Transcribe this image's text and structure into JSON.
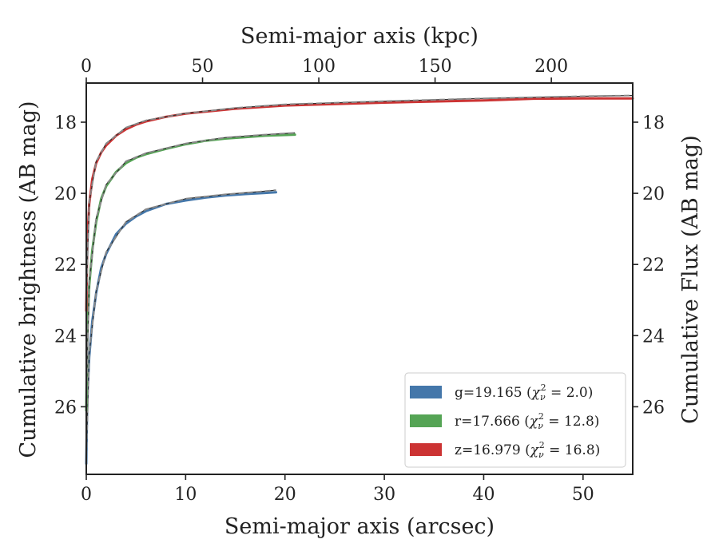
{
  "chart_data": {
    "type": "line",
    "xlabel": "Semi-major axis (arcsec)",
    "x2label": "Semi-major axis (kpc)",
    "ylabel": "Cumulative brightness (AB mag)",
    "y2label": "Cumulative Flux (AB mag)",
    "xlim": [
      0,
      55
    ],
    "x2lim": [
      0,
      235
    ],
    "ylim": [
      27.9,
      16.9
    ],
    "y_inverted": true,
    "x_ticks": [
      "0",
      "10",
      "20",
      "30",
      "40",
      "50"
    ],
    "x2_ticks": [
      "0",
      "50",
      "100",
      "150",
      "200"
    ],
    "y_ticks": [
      "18",
      "20",
      "22",
      "24",
      "26"
    ],
    "grid": false,
    "legend_position": "lower-right",
    "series": [
      {
        "name": "g",
        "legend": {
          "main": "g=19.165 (",
          "chi_sub": "ν",
          "chi_sup": "2",
          "value": " = 2.0)"
        },
        "color": "#4477aa",
        "model_color": "#888888",
        "x": [
          0,
          0.1,
          0.3,
          0.6,
          1,
          1.5,
          2,
          3,
          4,
          5,
          6,
          8,
          10,
          12,
          14,
          16,
          18,
          19.1
        ],
        "y": [
          27.6,
          25.8,
          24.6,
          23.6,
          22.8,
          22.1,
          21.7,
          21.15,
          20.85,
          20.65,
          20.5,
          20.3,
          20.2,
          20.12,
          20.06,
          20.02,
          19.99,
          19.97
        ],
        "model_x": [
          0,
          0.3,
          1,
          2,
          4,
          6,
          10,
          14,
          18,
          19.1
        ],
        "model_y": [
          27.4,
          24.5,
          22.75,
          21.65,
          20.8,
          20.45,
          20.15,
          20.03,
          19.94,
          19.91
        ]
      },
      {
        "name": "r",
        "legend": {
          "main": "r=17.666 (",
          "chi_sub": "ν",
          "chi_sup": "2",
          "value": " = 12.8)"
        },
        "color": "#55a455",
        "model_color": "#888888",
        "x": [
          0,
          0.1,
          0.3,
          0.6,
          1,
          1.5,
          2,
          3,
          4,
          5,
          6,
          8,
          10,
          12,
          14,
          16,
          18,
          21
        ],
        "y": [
          26.1,
          24.0,
          22.6,
          21.6,
          20.8,
          20.15,
          19.8,
          19.4,
          19.15,
          19.0,
          18.9,
          18.75,
          18.62,
          18.52,
          18.46,
          18.42,
          18.38,
          18.35
        ],
        "model_x": [
          0,
          0.3,
          1,
          2,
          4,
          6,
          10,
          14,
          18,
          21
        ],
        "model_y": [
          25.8,
          22.5,
          20.7,
          19.75,
          19.1,
          18.87,
          18.6,
          18.43,
          18.35,
          18.3
        ]
      },
      {
        "name": "z",
        "legend": {
          "main": "z=16.979 (",
          "chi_sub": "ν",
          "chi_sup": "2",
          "value": " = 16.8)"
        },
        "color": "#cc3333",
        "model_color": "#888888",
        "x": [
          0,
          0.1,
          0.3,
          0.6,
          1,
          1.5,
          2,
          3,
          4,
          5,
          6,
          8,
          10,
          15,
          20,
          30,
          40,
          45,
          50,
          55
        ],
        "y": [
          23.3,
          21.4,
          20.3,
          19.6,
          19.15,
          18.85,
          18.65,
          18.38,
          18.2,
          18.07,
          17.98,
          17.85,
          17.76,
          17.62,
          17.53,
          17.45,
          17.39,
          17.34,
          17.33,
          17.33
        ],
        "model_x": [
          0,
          0.3,
          1,
          2,
          4,
          6,
          10,
          15,
          20,
          30,
          40,
          50,
          55
        ],
        "model_y": [
          23.0,
          20.25,
          19.1,
          18.6,
          18.15,
          17.95,
          17.75,
          17.6,
          17.5,
          17.41,
          17.33,
          17.27,
          17.25
        ]
      }
    ]
  }
}
